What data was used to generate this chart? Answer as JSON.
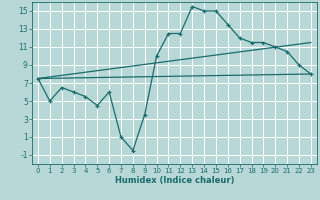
{
  "xlabel": "Humidex (Indice chaleur)",
  "background_color": "#b8d8d8",
  "grid_color": "#ffffff",
  "line_color": "#1a6b6b",
  "xlim": [
    -0.5,
    23.5
  ],
  "ylim": [
    -2,
    16
  ],
  "xticks": [
    0,
    1,
    2,
    3,
    4,
    5,
    6,
    7,
    8,
    9,
    10,
    11,
    12,
    13,
    14,
    15,
    16,
    17,
    18,
    19,
    20,
    21,
    22,
    23
  ],
  "yticks": [
    -1,
    1,
    3,
    5,
    7,
    9,
    11,
    13,
    15
  ],
  "curve1_x": [
    0,
    1,
    2,
    3,
    4,
    5,
    6,
    7,
    8,
    9,
    10,
    11,
    12,
    13,
    14,
    15,
    16,
    17,
    18,
    19,
    20,
    21,
    22,
    23
  ],
  "curve1_y": [
    7.5,
    5.0,
    6.5,
    6.0,
    5.5,
    4.5,
    6.0,
    1.0,
    -0.5,
    3.5,
    10.0,
    12.5,
    12.5,
    15.5,
    15.0,
    15.0,
    13.5,
    12.0,
    11.5,
    11.5,
    11.0,
    10.5,
    9.0,
    8.0
  ],
  "curve2_x": [
    0,
    23
  ],
  "curve2_y": [
    7.5,
    8.0
  ],
  "curve3_x": [
    0,
    23
  ],
  "curve3_y": [
    7.5,
    11.5
  ],
  "marker": "+"
}
